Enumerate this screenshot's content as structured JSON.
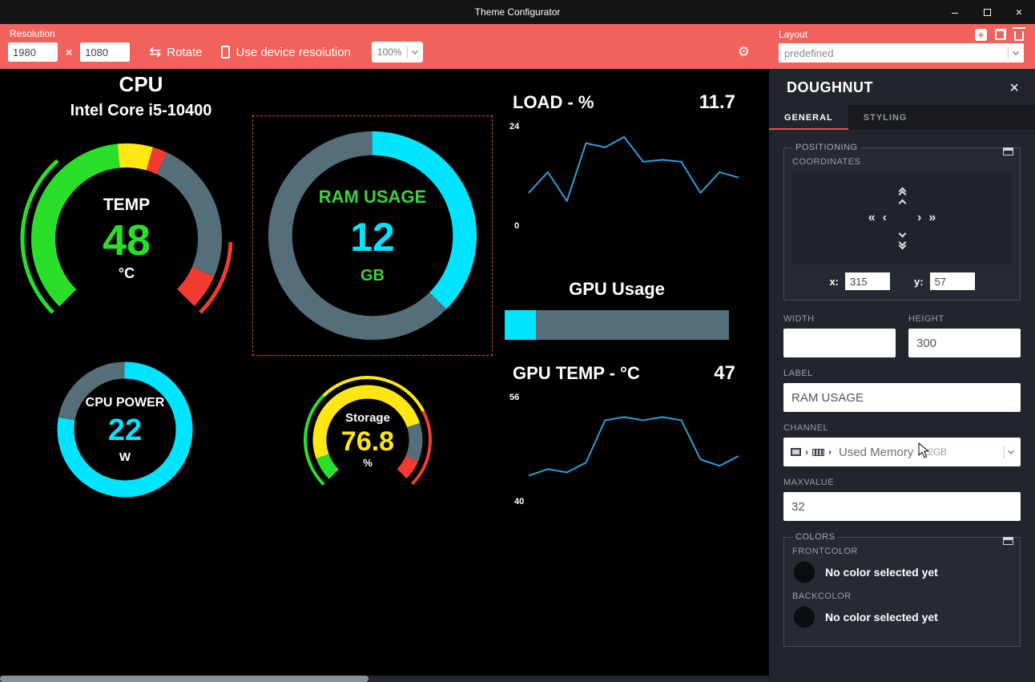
{
  "titlebar": {
    "title": "Theme Configurator",
    "minimize": "–",
    "close": "×"
  },
  "toolbar": {
    "resolution_label": "Resolution",
    "res_width": "1980",
    "res_times": "×",
    "res_height": "1080",
    "rotate_label": "Rotate",
    "device_label": "Use device resolution",
    "zoom_value": "100%",
    "layout_label": "Layout",
    "layout_value": "predefined"
  },
  "canvas": {
    "cpu_title": "CPU",
    "cpu_subtitle": "Intel Core i5-10400"
  },
  "chart_data": [
    {
      "type": "line",
      "title": "LOAD - %",
      "current": 11.7,
      "ymin": 0,
      "ymax": 24,
      "values": [
        8,
        13,
        6,
        20,
        19,
        21.5,
        15.5,
        16,
        15.5,
        8,
        13,
        11.7
      ],
      "line_color": "#2b9fd9",
      "grid": false,
      "legend": "none"
    },
    {
      "type": "bar",
      "title": "GPU Usage",
      "percent": 14,
      "max": 100,
      "front_color": "#00e5ff",
      "back_color": "#546e7a"
    },
    {
      "type": "line",
      "title": "GPU TEMP - °C",
      "current": 47,
      "ymin": 40,
      "ymax": 56,
      "values": [
        44,
        45,
        44.5,
        46,
        52.5,
        53,
        52.5,
        53,
        52.5,
        46.5,
        45.5,
        47
      ],
      "line_color": "#2b9fd9",
      "grid": false,
      "legend": "none"
    },
    {
      "type": "gauge",
      "label": "TEMP",
      "value": 48,
      "unit": "°C",
      "max": 100,
      "colors": [
        "#2adf2a",
        "#ffe713",
        "#f23c32",
        "#546e7a"
      ]
    },
    {
      "type": "doughnut",
      "label": "RAM USAGE",
      "value": 12,
      "unit": "GB",
      "max": 32,
      "colors": [
        "#00e5ff",
        "#546e7a"
      ],
      "selected": true
    },
    {
      "type": "doughnut",
      "label": "CPU POWER",
      "value": 22,
      "unit": "W",
      "colors": [
        "#00e5ff",
        "#546e7a"
      ]
    },
    {
      "type": "gauge",
      "label": "Storage",
      "value": 76.8,
      "unit": "%",
      "max": 100,
      "colors": [
        "#2adf2a",
        "#ffe713",
        "#f23c32",
        "#546e7a"
      ]
    }
  ],
  "panel": {
    "title": "DOUGHNUT",
    "close": "×",
    "tabs": [
      {
        "label": "GENERAL"
      },
      {
        "label": "STYLING"
      }
    ],
    "positioning": {
      "legend": "POSITIONING",
      "coordinates_label": "COORDINATES",
      "left_fast": "«",
      "left": "‹",
      "right": "›",
      "right_fast": "»",
      "x_label": "x:",
      "x_value": "315",
      "y_label": "y:",
      "y_value": "57"
    },
    "width_label": "WIDTH",
    "width_value": "",
    "height_label": "HEIGHT",
    "height_value": "300",
    "label_label": "LABEL",
    "label_value": "RAM USAGE",
    "channel_label": "CHANNEL",
    "channel_value": "Used Memory",
    "channel_detail": "12GB",
    "channel_arrow": "›",
    "maxvalue_label": "MAXVALUE",
    "maxvalue_value": "32",
    "colors": {
      "legend": "COLORS",
      "frontcolor_label": "FRONTCOLOR",
      "frontcolor_text": "No color selected yet",
      "backcolor_label": "BACKCOLOR",
      "backcolor_text": "No color selected yet"
    }
  },
  "theme": {
    "toolbar_red": "#f2625c",
    "panel_bg": "#22252b",
    "accent_tab": "#e5534b",
    "cyan": "#00e5ff",
    "green": "#2adf2a",
    "yellow": "#ffe713",
    "red": "#f23c32",
    "slate": "#546e7a",
    "line_blue": "#2b9fd9"
  }
}
